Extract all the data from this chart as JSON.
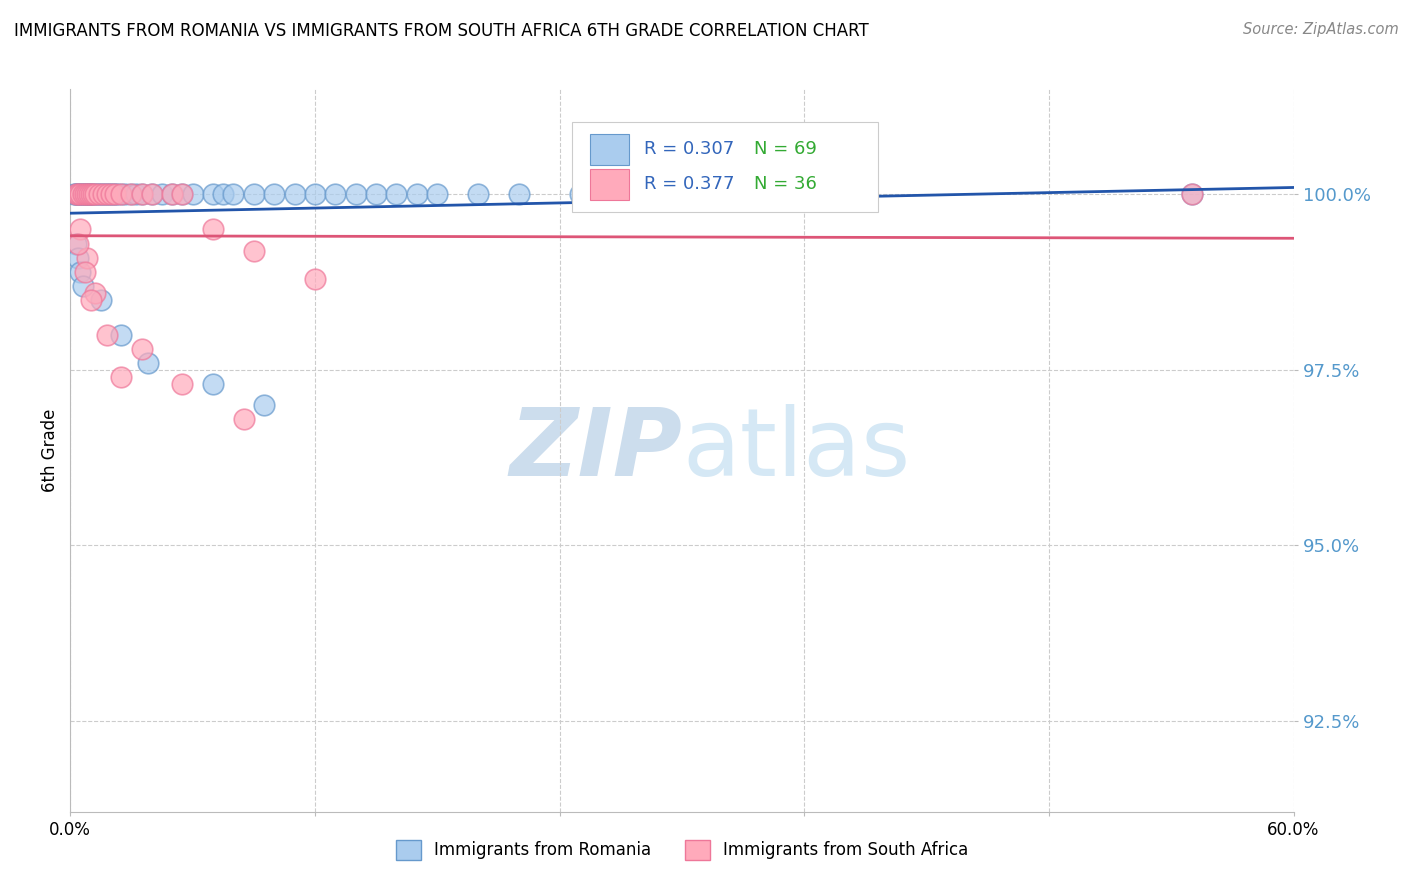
{
  "title": "IMMIGRANTS FROM ROMANIA VS IMMIGRANTS FROM SOUTH AFRICA 6TH GRADE CORRELATION CHART",
  "source": "Source: ZipAtlas.com",
  "ylabel": "6th Grade",
  "yticks": [
    92.5,
    95.0,
    97.5,
    100.0
  ],
  "ytick_labels": [
    "92.5%",
    "95.0%",
    "97.5%",
    "100.0%"
  ],
  "xlim": [
    0.0,
    60.0
  ],
  "ylim": [
    91.2,
    101.5
  ],
  "romania_color": "#aaccee",
  "romania_edge": "#6699cc",
  "southafrica_color": "#ffaabb",
  "southafrica_edge": "#ee7799",
  "romania_R": 0.307,
  "romania_N": 69,
  "southafrica_R": 0.377,
  "southafrica_N": 36,
  "legend_R_color": "#3366bb",
  "legend_N_color": "#33aa33",
  "romania_trend_color": "#2255aa",
  "southafrica_trend_color": "#dd5577",
  "romania_x": [
    0.2,
    0.3,
    0.3,
    0.4,
    0.4,
    0.5,
    0.5,
    0.6,
    0.6,
    0.7,
    0.7,
    0.8,
    0.8,
    0.9,
    0.9,
    1.0,
    1.0,
    1.1,
    1.2,
    1.3,
    1.4,
    1.5,
    1.6,
    1.7,
    1.8,
    1.9,
    2.0,
    2.1,
    2.2,
    2.3,
    2.5,
    2.7,
    3.0,
    3.2,
    3.5,
    4.0,
    4.5,
    5.0,
    5.5,
    6.0,
    7.0,
    7.5,
    8.0,
    9.0,
    10.0,
    11.0,
    12.0,
    13.0,
    14.0,
    15.0,
    16.0,
    17.0,
    18.0,
    20.0,
    22.0,
    25.0,
    28.0,
    30.0,
    35.0,
    1.5,
    2.5,
    3.8,
    7.0,
    9.5,
    0.3,
    0.4,
    0.5,
    0.6,
    55.0
  ],
  "romania_y": [
    100.0,
    100.0,
    100.0,
    100.0,
    100.0,
    100.0,
    100.0,
    100.0,
    100.0,
    100.0,
    100.0,
    100.0,
    100.0,
    100.0,
    100.0,
    100.0,
    100.0,
    100.0,
    100.0,
    100.0,
    100.0,
    100.0,
    100.0,
    100.0,
    100.0,
    100.0,
    100.0,
    100.0,
    100.0,
    100.0,
    100.0,
    100.0,
    100.0,
    100.0,
    100.0,
    100.0,
    100.0,
    100.0,
    100.0,
    100.0,
    100.0,
    100.0,
    100.0,
    100.0,
    100.0,
    100.0,
    100.0,
    100.0,
    100.0,
    100.0,
    100.0,
    100.0,
    100.0,
    100.0,
    100.0,
    100.0,
    100.0,
    100.0,
    100.0,
    98.5,
    98.0,
    97.6,
    97.3,
    97.0,
    99.3,
    99.1,
    98.9,
    98.7,
    100.0
  ],
  "southafrica_x": [
    0.3,
    0.4,
    0.5,
    0.6,
    0.7,
    0.8,
    0.9,
    1.0,
    1.1,
    1.2,
    1.4,
    1.6,
    1.8,
    2.0,
    2.2,
    2.5,
    3.0,
    3.5,
    4.0,
    5.0,
    5.5,
    7.0,
    9.0,
    12.0,
    0.5,
    0.8,
    1.2,
    1.8,
    2.5,
    3.5,
    5.5,
    8.5,
    0.4,
    0.7,
    1.0,
    55.0
  ],
  "southafrica_y": [
    100.0,
    100.0,
    100.0,
    100.0,
    100.0,
    100.0,
    100.0,
    100.0,
    100.0,
    100.0,
    100.0,
    100.0,
    100.0,
    100.0,
    100.0,
    100.0,
    100.0,
    100.0,
    100.0,
    100.0,
    100.0,
    99.5,
    99.2,
    98.8,
    99.5,
    99.1,
    98.6,
    98.0,
    97.4,
    97.8,
    97.3,
    96.8,
    99.3,
    98.9,
    98.5,
    100.0
  ],
  "watermark_text": "ZIPatlas",
  "watermark_zip_color": "#d0dff0",
  "watermark_atlas_color": "#d0dff0"
}
